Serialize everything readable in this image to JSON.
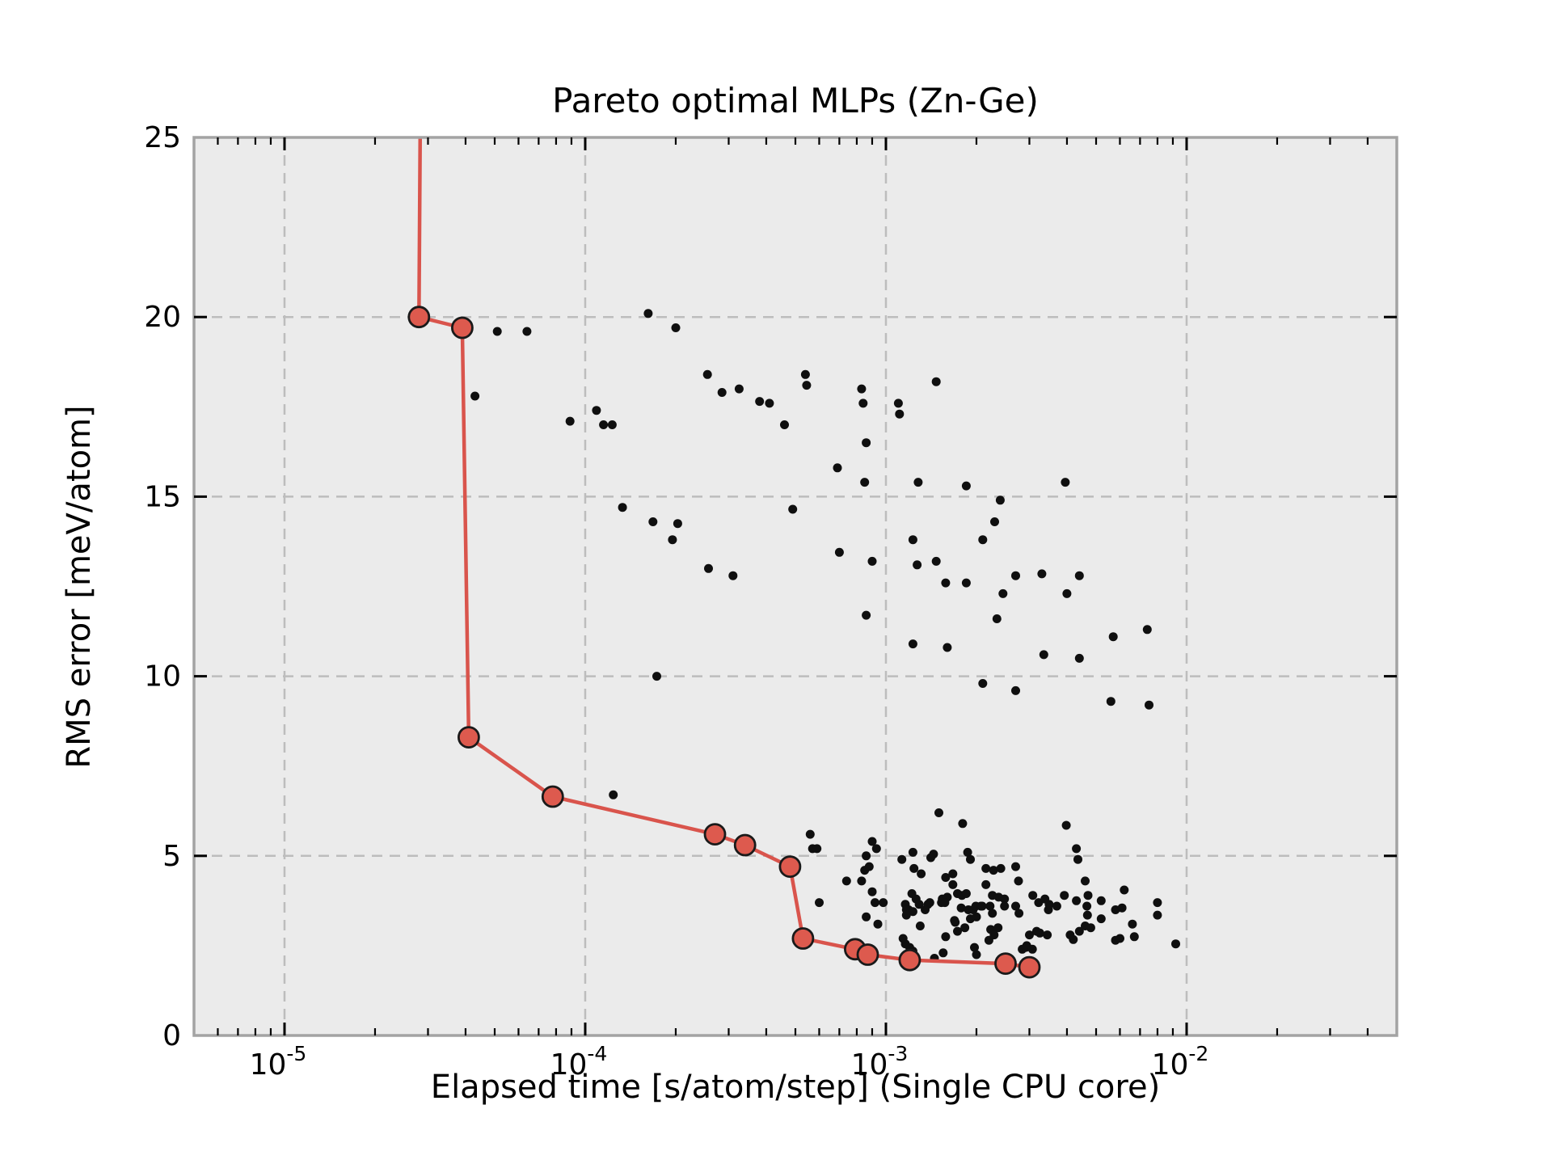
{
  "chart_data": {
    "type": "scatter",
    "title": "Pareto optimal MLPs (Zn-Ge)",
    "xlabel": "Elapsed time [s/atom/step] (Single CPU core)",
    "ylabel": "RMS error [meV/atom]",
    "x_scale": "log",
    "y_scale": "linear",
    "xlim": [
      5e-06,
      0.05
    ],
    "ylim": [
      0,
      25
    ],
    "grid": true,
    "legend_position": "none",
    "yticks": [
      {
        "value": 0,
        "label": "0"
      },
      {
        "value": 5,
        "label": "5"
      },
      {
        "value": 10,
        "label": "10"
      },
      {
        "value": 15,
        "label": "15"
      },
      {
        "value": 20,
        "label": "20"
      },
      {
        "value": 25,
        "label": "25"
      }
    ],
    "xticks": [
      {
        "value": 1e-05,
        "base": "10",
        "exp": "-5"
      },
      {
        "value": 0.0001,
        "base": "10",
        "exp": "-4"
      },
      {
        "value": 0.001,
        "base": "10",
        "exp": "-3"
      },
      {
        "value": 0.01,
        "base": "10",
        "exp": "-2"
      }
    ],
    "colors": {
      "scatter": "#0f0f0f",
      "pareto_fill": "#dd5a4e",
      "pareto_line": "#d9544c",
      "pareto_edge": "#1a1a1a",
      "plot_bg": "#ebebeb",
      "grid": "#bdbdbd",
      "spine": "#a3a3a3",
      "tick": "#000000"
    },
    "series": [
      {
        "name": "all-mlps",
        "kind": "scatter",
        "marker": "dot",
        "points": [
          [
            5.1e-05,
            19.6
          ],
          [
            6.4e-05,
            19.6
          ],
          [
            0.000162,
            20.1
          ],
          [
            0.0002,
            19.7
          ],
          [
            4.3e-05,
            17.8
          ],
          [
            0.000255,
            18.4
          ],
          [
            0.000285,
            17.9
          ],
          [
            0.000325,
            18.0
          ],
          [
            8.9e-05,
            17.1
          ],
          [
            0.000109,
            17.4
          ],
          [
            0.000115,
            17.0
          ],
          [
            0.000123,
            17.0
          ],
          [
            0.00038,
            17.65
          ],
          [
            0.00041,
            17.6
          ],
          [
            0.00046,
            17.0
          ],
          [
            0.00054,
            18.4
          ],
          [
            0.000545,
            18.1
          ],
          [
            0.00083,
            18.0
          ],
          [
            0.00084,
            17.6
          ],
          [
            0.00147,
            18.2
          ],
          [
            0.0011,
            17.6
          ],
          [
            0.00111,
            17.3
          ],
          [
            0.00086,
            16.5
          ],
          [
            0.00069,
            15.8
          ],
          [
            0.00085,
            15.4
          ],
          [
            0.00128,
            15.4
          ],
          [
            0.00185,
            15.3
          ],
          [
            0.00395,
            15.4
          ],
          [
            0.000133,
            14.7
          ],
          [
            0.000168,
            14.3
          ],
          [
            0.000203,
            14.25
          ],
          [
            0.000195,
            13.8
          ],
          [
            0.000257,
            13.0
          ],
          [
            0.00031,
            12.8
          ],
          [
            0.00049,
            14.65
          ],
          [
            0.0024,
            14.9
          ],
          [
            0.0023,
            14.3
          ],
          [
            0.0021,
            13.8
          ],
          [
            0.00123,
            13.8
          ],
          [
            0.0007,
            13.45
          ],
          [
            0.0009,
            13.2
          ],
          [
            0.00127,
            13.1
          ],
          [
            0.00147,
            13.2
          ],
          [
            0.00158,
            12.6
          ],
          [
            0.00185,
            12.6
          ],
          [
            0.0027,
            12.8
          ],
          [
            0.0033,
            12.85
          ],
          [
            0.0044,
            12.8
          ],
          [
            0.00245,
            12.3
          ],
          [
            0.004,
            12.3
          ],
          [
            0.00086,
            11.7
          ],
          [
            0.00234,
            11.6
          ],
          [
            0.0057,
            11.1
          ],
          [
            0.0074,
            11.3
          ],
          [
            0.00123,
            10.9
          ],
          [
            0.0016,
            10.8
          ],
          [
            0.00335,
            10.6
          ],
          [
            0.0044,
            10.5
          ],
          [
            0.000173,
            10.0
          ],
          [
            0.0021,
            9.8
          ],
          [
            0.0027,
            9.6
          ],
          [
            0.0056,
            9.3
          ],
          [
            0.0075,
            9.2
          ],
          [
            0.000124,
            6.7
          ],
          [
            0.0015,
            6.2
          ],
          [
            0.0018,
            5.9
          ],
          [
            0.00398,
            5.85
          ],
          [
            0.00056,
            5.6
          ],
          [
            0.00057,
            5.2
          ],
          [
            0.00059,
            5.2
          ],
          [
            0.0009,
            5.4
          ],
          [
            0.00086,
            5.0
          ],
          [
            0.00093,
            5.2
          ],
          [
            0.00123,
            5.1
          ],
          [
            0.00141,
            4.95
          ],
          [
            0.00144,
            5.05
          ],
          [
            0.00187,
            5.1
          ],
          [
            0.00191,
            4.9
          ],
          [
            0.0043,
            5.2
          ],
          [
            0.00435,
            4.9
          ],
          [
            0.00085,
            4.6
          ],
          [
            0.00088,
            4.7
          ],
          [
            0.00074,
            4.3
          ],
          [
            0.00083,
            4.3
          ],
          [
            0.00113,
            4.9
          ],
          [
            0.00124,
            4.65
          ],
          [
            0.00131,
            4.5
          ],
          [
            0.00158,
            4.4
          ],
          [
            0.00167,
            4.5
          ],
          [
            0.00167,
            4.2
          ],
          [
            0.00215,
            4.65
          ],
          [
            0.00228,
            4.6
          ],
          [
            0.00241,
            4.65
          ],
          [
            0.00215,
            4.2
          ],
          [
            0.0027,
            4.7
          ],
          [
            0.00276,
            4.3
          ],
          [
            0.0046,
            4.3
          ],
          [
            0.0062,
            4.05
          ],
          [
            0.0009,
            4.0
          ],
          [
            0.00092,
            3.7
          ],
          [
            0.00098,
            3.7
          ],
          [
            0.0006,
            3.7
          ],
          [
            0.00122,
            3.95
          ],
          [
            0.00126,
            3.8
          ],
          [
            0.00116,
            3.65
          ],
          [
            0.00119,
            3.5
          ],
          [
            0.00129,
            3.65
          ],
          [
            0.00135,
            3.5
          ],
          [
            0.00138,
            3.65
          ],
          [
            0.0014,
            3.7
          ],
          [
            0.00153,
            3.7
          ],
          [
            0.00154,
            3.8
          ],
          [
            0.0016,
            3.85
          ],
          [
            0.00157,
            3.7
          ],
          [
            0.00173,
            3.95
          ],
          [
            0.00179,
            3.9
          ],
          [
            0.00185,
            3.95
          ],
          [
            0.00178,
            3.55
          ],
          [
            0.00188,
            3.5
          ],
          [
            0.00195,
            3.5
          ],
          [
            0.00191,
            3.25
          ],
          [
            0.002,
            3.3
          ],
          [
            0.00199,
            3.6
          ],
          [
            0.00207,
            3.6
          ],
          [
            0.00209,
            3.6
          ],
          [
            0.00222,
            3.6
          ],
          [
            0.00226,
            3.9
          ],
          [
            0.00237,
            3.85
          ],
          [
            0.00248,
            3.8
          ],
          [
            0.00248,
            3.6
          ],
          [
            0.00226,
            3.4
          ],
          [
            0.0027,
            3.6
          ],
          [
            0.00277,
            3.4
          ],
          [
            0.00308,
            3.9
          ],
          [
            0.00322,
            3.7
          ],
          [
            0.00338,
            3.8
          ],
          [
            0.00347,
            3.5
          ],
          [
            0.00349,
            3.65
          ],
          [
            0.0037,
            3.6
          ],
          [
            0.00392,
            3.9
          ],
          [
            0.0043,
            3.75
          ],
          [
            0.00466,
            3.6
          ],
          [
            0.00468,
            3.35
          ],
          [
            0.0047,
            3.9
          ],
          [
            0.0052,
            3.75
          ],
          [
            0.0058,
            3.5
          ],
          [
            0.0061,
            3.55
          ],
          [
            0.008,
            3.7
          ],
          [
            0.008,
            3.35
          ],
          [
            0.00086,
            3.3
          ],
          [
            0.00094,
            3.1
          ],
          [
            0.00117,
            3.5
          ],
          [
            0.00123,
            3.45
          ],
          [
            0.00117,
            3.35
          ],
          [
            0.0013,
            3.05
          ],
          [
            0.0017,
            3.15
          ],
          [
            0.00183,
            3.0
          ],
          [
            0.00169,
            3.2
          ],
          [
            0.00223,
            2.95
          ],
          [
            0.00236,
            3.0
          ],
          [
            0.003,
            2.8
          ],
          [
            0.00317,
            2.9
          ],
          [
            0.00325,
            2.85
          ],
          [
            0.00344,
            2.8
          ],
          [
            0.0041,
            2.8
          ],
          [
            0.0042,
            2.67
          ],
          [
            0.0044,
            2.9
          ],
          [
            0.0046,
            3.05
          ],
          [
            0.0048,
            3.0
          ],
          [
            0.0052,
            3.25
          ],
          [
            0.0066,
            3.1
          ],
          [
            0.00114,
            2.7
          ],
          [
            0.00116,
            2.55
          ],
          [
            0.0012,
            2.45
          ],
          [
            0.00123,
            2.35
          ],
          [
            0.00155,
            2.3
          ],
          [
            0.00145,
            2.15
          ],
          [
            0.00158,
            2.75
          ],
          [
            0.00173,
            2.9
          ],
          [
            0.00197,
            2.45
          ],
          [
            0.002,
            2.25
          ],
          [
            0.0022,
            2.65
          ],
          [
            0.00229,
            2.8
          ],
          [
            0.00284,
            2.4
          ],
          [
            0.00292,
            2.45
          ],
          [
            0.00294,
            2.5
          ],
          [
            0.00307,
            2.4
          ],
          [
            0.0058,
            2.65
          ],
          [
            0.006,
            2.7
          ],
          [
            0.0067,
            2.75
          ],
          [
            0.0092,
            2.55
          ]
        ]
      },
      {
        "name": "pareto-front",
        "kind": "line-marker",
        "line_entry_point": [
          2.83e-05,
          25.8
        ],
        "points": [
          [
            2.8e-05,
            20.0
          ],
          [
            3.9e-05,
            19.7
          ],
          [
            4.1e-05,
            8.3
          ],
          [
            7.8e-05,
            6.65
          ],
          [
            0.00027,
            5.6
          ],
          [
            0.00034,
            5.3
          ],
          [
            0.00048,
            4.7
          ],
          [
            0.00053,
            2.7
          ],
          [
            0.00079,
            2.4
          ],
          [
            0.00087,
            2.25
          ],
          [
            0.0012,
            2.1
          ],
          [
            0.0025,
            2.0
          ],
          [
            0.003,
            1.9
          ]
        ]
      }
    ]
  }
}
